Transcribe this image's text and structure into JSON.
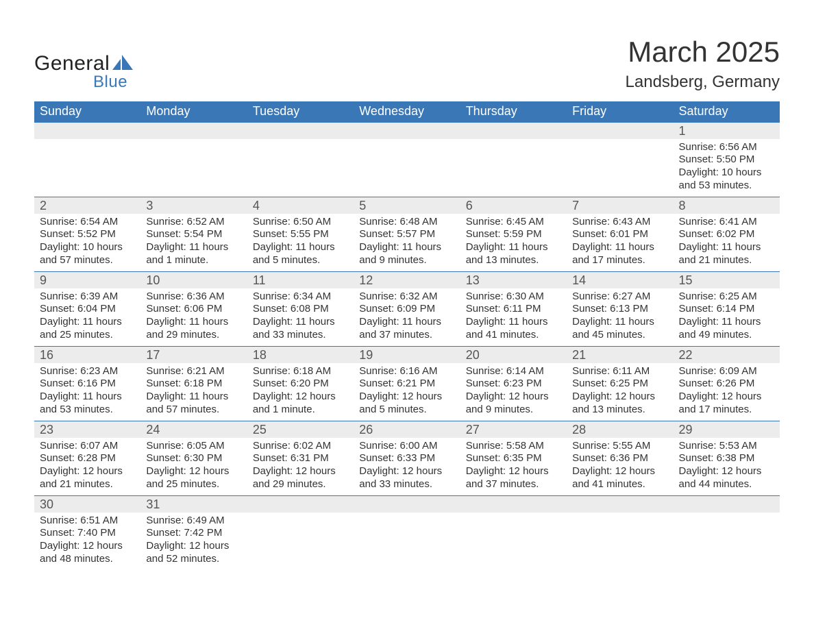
{
  "brand": {
    "word1": "General",
    "word2": "Blue",
    "text_color": "#222222",
    "accent_color": "#3a77b6"
  },
  "title": {
    "month": "March 2025",
    "location": "Landsberg, Germany",
    "title_fontsize": 42,
    "location_fontsize": 24
  },
  "styling": {
    "header_bg": "#3a77b6",
    "header_text": "#ffffff",
    "daynum_bg": "#ececec",
    "row_border_color": "#3a77b6",
    "body_bg": "#ffffff",
    "body_text": "#333333",
    "font_family": "Arial",
    "header_fontsize": 18,
    "daynum_fontsize": 18,
    "body_fontsize": 15
  },
  "calendar": {
    "columns": [
      "Sunday",
      "Monday",
      "Tuesday",
      "Wednesday",
      "Thursday",
      "Friday",
      "Saturday"
    ],
    "weeks": [
      [
        null,
        null,
        null,
        null,
        null,
        null,
        {
          "day": "1",
          "sunrise": "Sunrise: 6:56 AM",
          "sunset": "Sunset: 5:50 PM",
          "daylight": "Daylight: 10 hours and 53 minutes."
        }
      ],
      [
        {
          "day": "2",
          "sunrise": "Sunrise: 6:54 AM",
          "sunset": "Sunset: 5:52 PM",
          "daylight": "Daylight: 10 hours and 57 minutes."
        },
        {
          "day": "3",
          "sunrise": "Sunrise: 6:52 AM",
          "sunset": "Sunset: 5:54 PM",
          "daylight": "Daylight: 11 hours and 1 minute."
        },
        {
          "day": "4",
          "sunrise": "Sunrise: 6:50 AM",
          "sunset": "Sunset: 5:55 PM",
          "daylight": "Daylight: 11 hours and 5 minutes."
        },
        {
          "day": "5",
          "sunrise": "Sunrise: 6:48 AM",
          "sunset": "Sunset: 5:57 PM",
          "daylight": "Daylight: 11 hours and 9 minutes."
        },
        {
          "day": "6",
          "sunrise": "Sunrise: 6:45 AM",
          "sunset": "Sunset: 5:59 PM",
          "daylight": "Daylight: 11 hours and 13 minutes."
        },
        {
          "day": "7",
          "sunrise": "Sunrise: 6:43 AM",
          "sunset": "Sunset: 6:01 PM",
          "daylight": "Daylight: 11 hours and 17 minutes."
        },
        {
          "day": "8",
          "sunrise": "Sunrise: 6:41 AM",
          "sunset": "Sunset: 6:02 PM",
          "daylight": "Daylight: 11 hours and 21 minutes."
        }
      ],
      [
        {
          "day": "9",
          "sunrise": "Sunrise: 6:39 AM",
          "sunset": "Sunset: 6:04 PM",
          "daylight": "Daylight: 11 hours and 25 minutes."
        },
        {
          "day": "10",
          "sunrise": "Sunrise: 6:36 AM",
          "sunset": "Sunset: 6:06 PM",
          "daylight": "Daylight: 11 hours and 29 minutes."
        },
        {
          "day": "11",
          "sunrise": "Sunrise: 6:34 AM",
          "sunset": "Sunset: 6:08 PM",
          "daylight": "Daylight: 11 hours and 33 minutes."
        },
        {
          "day": "12",
          "sunrise": "Sunrise: 6:32 AM",
          "sunset": "Sunset: 6:09 PM",
          "daylight": "Daylight: 11 hours and 37 minutes."
        },
        {
          "day": "13",
          "sunrise": "Sunrise: 6:30 AM",
          "sunset": "Sunset: 6:11 PM",
          "daylight": "Daylight: 11 hours and 41 minutes."
        },
        {
          "day": "14",
          "sunrise": "Sunrise: 6:27 AM",
          "sunset": "Sunset: 6:13 PM",
          "daylight": "Daylight: 11 hours and 45 minutes."
        },
        {
          "day": "15",
          "sunrise": "Sunrise: 6:25 AM",
          "sunset": "Sunset: 6:14 PM",
          "daylight": "Daylight: 11 hours and 49 minutes."
        }
      ],
      [
        {
          "day": "16",
          "sunrise": "Sunrise: 6:23 AM",
          "sunset": "Sunset: 6:16 PM",
          "daylight": "Daylight: 11 hours and 53 minutes."
        },
        {
          "day": "17",
          "sunrise": "Sunrise: 6:21 AM",
          "sunset": "Sunset: 6:18 PM",
          "daylight": "Daylight: 11 hours and 57 minutes."
        },
        {
          "day": "18",
          "sunrise": "Sunrise: 6:18 AM",
          "sunset": "Sunset: 6:20 PM",
          "daylight": "Daylight: 12 hours and 1 minute."
        },
        {
          "day": "19",
          "sunrise": "Sunrise: 6:16 AM",
          "sunset": "Sunset: 6:21 PM",
          "daylight": "Daylight: 12 hours and 5 minutes."
        },
        {
          "day": "20",
          "sunrise": "Sunrise: 6:14 AM",
          "sunset": "Sunset: 6:23 PM",
          "daylight": "Daylight: 12 hours and 9 minutes."
        },
        {
          "day": "21",
          "sunrise": "Sunrise: 6:11 AM",
          "sunset": "Sunset: 6:25 PM",
          "daylight": "Daylight: 12 hours and 13 minutes."
        },
        {
          "day": "22",
          "sunrise": "Sunrise: 6:09 AM",
          "sunset": "Sunset: 6:26 PM",
          "daylight": "Daylight: 12 hours and 17 minutes."
        }
      ],
      [
        {
          "day": "23",
          "sunrise": "Sunrise: 6:07 AM",
          "sunset": "Sunset: 6:28 PM",
          "daylight": "Daylight: 12 hours and 21 minutes."
        },
        {
          "day": "24",
          "sunrise": "Sunrise: 6:05 AM",
          "sunset": "Sunset: 6:30 PM",
          "daylight": "Daylight: 12 hours and 25 minutes."
        },
        {
          "day": "25",
          "sunrise": "Sunrise: 6:02 AM",
          "sunset": "Sunset: 6:31 PM",
          "daylight": "Daylight: 12 hours and 29 minutes."
        },
        {
          "day": "26",
          "sunrise": "Sunrise: 6:00 AM",
          "sunset": "Sunset: 6:33 PM",
          "daylight": "Daylight: 12 hours and 33 minutes."
        },
        {
          "day": "27",
          "sunrise": "Sunrise: 5:58 AM",
          "sunset": "Sunset: 6:35 PM",
          "daylight": "Daylight: 12 hours and 37 minutes."
        },
        {
          "day": "28",
          "sunrise": "Sunrise: 5:55 AM",
          "sunset": "Sunset: 6:36 PM",
          "daylight": "Daylight: 12 hours and 41 minutes."
        },
        {
          "day": "29",
          "sunrise": "Sunrise: 5:53 AM",
          "sunset": "Sunset: 6:38 PM",
          "daylight": "Daylight: 12 hours and 44 minutes."
        }
      ],
      [
        {
          "day": "30",
          "sunrise": "Sunrise: 6:51 AM",
          "sunset": "Sunset: 7:40 PM",
          "daylight": "Daylight: 12 hours and 48 minutes."
        },
        {
          "day": "31",
          "sunrise": "Sunrise: 6:49 AM",
          "sunset": "Sunset: 7:42 PM",
          "daylight": "Daylight: 12 hours and 52 minutes."
        },
        null,
        null,
        null,
        null,
        null
      ]
    ]
  }
}
